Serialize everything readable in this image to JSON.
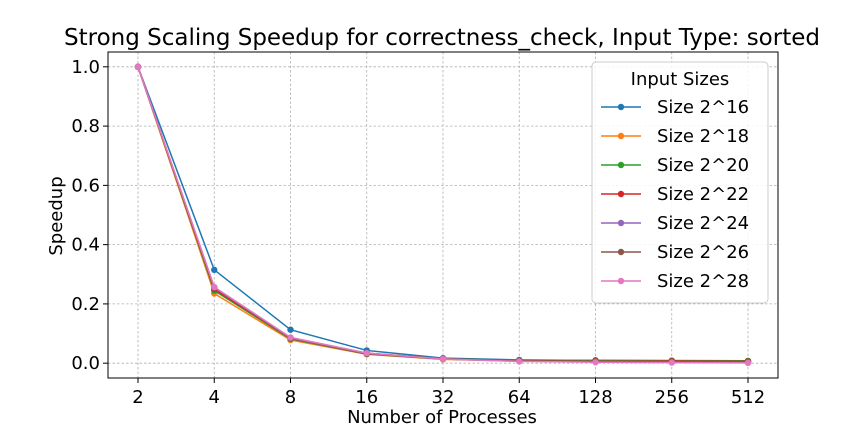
{
  "chart_data": {
    "type": "line",
    "title": "Strong Scaling Speedup for correctness_check, Input Type: sorted",
    "xlabel": "Number of Processes",
    "ylabel": "Speedup",
    "categories": [
      "2",
      "4",
      "8",
      "16",
      "32",
      "64",
      "128",
      "256",
      "512"
    ],
    "ylim": [
      -0.05,
      1.05
    ],
    "yticks": [
      "0.0",
      "0.2",
      "0.4",
      "0.6",
      "0.8",
      "1.0"
    ],
    "ytick_values": [
      0.0,
      0.2,
      0.4,
      0.6,
      0.8,
      1.0
    ],
    "grid": true,
    "legend": {
      "title": "Input Sizes",
      "placement": "top-right"
    },
    "series": [
      {
        "name": "Size 2^16",
        "color": "#1f77b4",
        "values": [
          1.0,
          0.315,
          0.113,
          0.043,
          0.017,
          0.011,
          0.009,
          0.007,
          0.006
        ]
      },
      {
        "name": "Size 2^18",
        "color": "#ff7f0e",
        "values": [
          1.0,
          0.235,
          0.078,
          0.03,
          0.013,
          0.007,
          0.005,
          0.004,
          0.003
        ]
      },
      {
        "name": "Size 2^20",
        "color": "#2ca02c",
        "values": [
          1.0,
          0.245,
          0.082,
          0.031,
          0.014,
          0.01,
          0.01,
          0.009,
          0.008
        ]
      },
      {
        "name": "Size 2^22",
        "color": "#d62728",
        "values": [
          1.0,
          0.25,
          0.084,
          0.032,
          0.014,
          0.008,
          0.007,
          0.007,
          0.006
        ]
      },
      {
        "name": "Size 2^24",
        "color": "#9467bd",
        "values": [
          1.0,
          0.255,
          0.085,
          0.033,
          0.014,
          0.007,
          0.005,
          0.004,
          0.003
        ]
      },
      {
        "name": "Size 2^26",
        "color": "#8c564b",
        "values": [
          1.0,
          0.256,
          0.086,
          0.034,
          0.015,
          0.008,
          0.006,
          0.005,
          0.004
        ]
      },
      {
        "name": "Size 2^28",
        "color": "#e377c2",
        "values": [
          1.0,
          0.257,
          0.087,
          0.034,
          0.014,
          0.006,
          0.003,
          0.002,
          0.001
        ]
      }
    ]
  }
}
